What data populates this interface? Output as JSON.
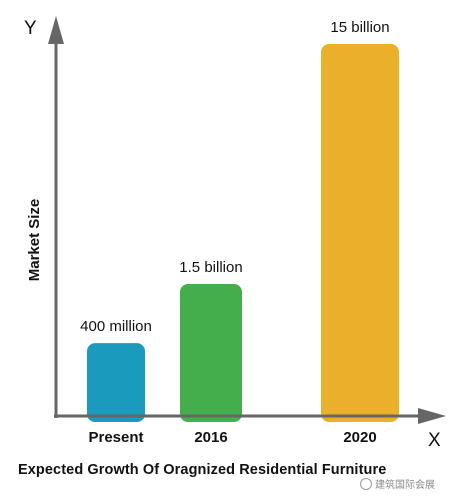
{
  "chart_data": {
    "type": "bar",
    "title": "Expected Growth Of Oragnized Residential Furniture",
    "xlabel": "X",
    "ylabel": "Y",
    "axis_title": "Market Size",
    "categories": [
      "Present",
      "2016",
      "2020"
    ],
    "values": [
      0.4,
      1.5,
      15
    ],
    "value_labels": [
      "400 million",
      "1.5 billion",
      "15 billion"
    ],
    "unit": "billion",
    "colors": [
      "#1a9bbd",
      "#44ad4c",
      "#ebb02a"
    ],
    "grid": false,
    "legend": "none"
  },
  "watermark": {
    "text": "建筑国际会展"
  }
}
